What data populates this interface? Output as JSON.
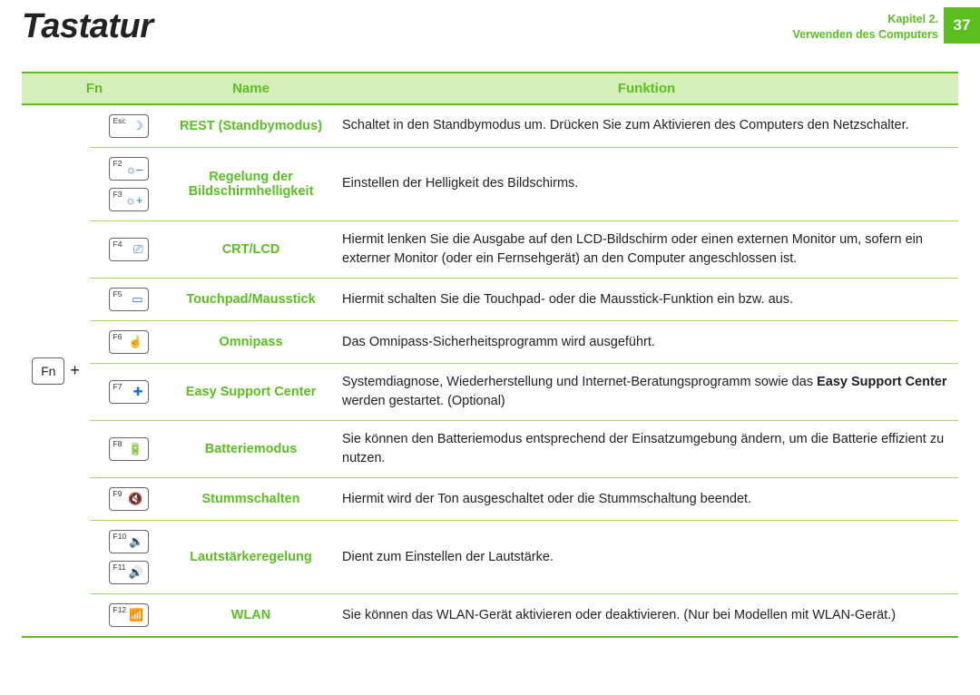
{
  "header": {
    "title": "Tastatur",
    "chapter_line1": "Kapitel 2.",
    "chapter_line2": "Verwenden des Computers",
    "page_number": "37"
  },
  "table": {
    "head": {
      "fn": "Fn",
      "name": "Name",
      "funktion": "Funktion"
    },
    "fn_key_label": "Fn",
    "fn_plus": "+",
    "rows": [
      {
        "keys": [
          {
            "label": "Esc",
            "icon": "☽",
            "icon_color": "#1f6fd1"
          }
        ],
        "name": "REST (Standbymodus)",
        "func_html": "Schaltet in den Standbymodus um. Drücken Sie zum Aktivieren des Computers den Netzschalter."
      },
      {
        "keys": [
          {
            "label": "F2",
            "icon": "☼–",
            "icon_color": "#1f6fd1"
          },
          {
            "label": "F3",
            "icon": "☼+",
            "icon_color": "#1f6fd1"
          }
        ],
        "name": "Regelung der Bildschirmhelligkeit",
        "func_html": "Einstellen der Helligkeit des Bildschirms."
      },
      {
        "keys": [
          {
            "label": "F4",
            "icon": "⎚",
            "icon_color": "#1f6fd1"
          }
        ],
        "name": "CRT/LCD",
        "func_html": "Hiermit lenken Sie die Ausgabe auf den LCD-Bildschirm oder einen externen Monitor um, sofern ein externer Monitor (oder ein Fernsehgerät) an den Computer angeschlossen ist."
      },
      {
        "keys": [
          {
            "label": "F5",
            "icon": "▭",
            "icon_color": "#1f6fd1"
          }
        ],
        "name": "Touchpad/Mausstick",
        "func_html": "Hiermit schalten Sie die Touchpad- oder die Mausstick-Funktion ein bzw. aus."
      },
      {
        "keys": [
          {
            "label": "F6",
            "icon": "☝",
            "icon_color": "#1f6fd1"
          }
        ],
        "name": "Omnipass",
        "func_html": "Das Omnipass-Sicherheitsprogramm wird ausgeführt."
      },
      {
        "keys": [
          {
            "label": "F7",
            "icon": "✚",
            "icon_color": "#1f6fd1"
          }
        ],
        "name": "Easy Support Center",
        "func_html": "Systemdiagnose, Wiederherstellung und Internet-Beratungsprogramm sowie das <b>Easy Support Center</b> werden gestartet. (Optional)"
      },
      {
        "keys": [
          {
            "label": "F8",
            "icon": "🔋",
            "icon_color": "#1f6fd1"
          }
        ],
        "name": "Batteriemodus",
        "func_html": "Sie können den Batteriemodus entsprechend der Einsatzumgebung ändern, um die Batterie effizient zu nutzen."
      },
      {
        "keys": [
          {
            "label": "F9",
            "icon": "🔇",
            "icon_color": "#1f6fd1"
          }
        ],
        "name": "Stummschalten",
        "func_html": "Hiermit wird der Ton ausgeschaltet oder die Stummschaltung beendet."
      },
      {
        "keys": [
          {
            "label": "F10",
            "icon": "🔉",
            "icon_color": "#1f6fd1"
          },
          {
            "label": "F11",
            "icon": "🔊",
            "icon_color": "#1f6fd1"
          }
        ],
        "name": "Lautstärkeregelung",
        "func_html": "Dient zum Einstellen der Lautstärke."
      },
      {
        "keys": [
          {
            "label": "F12",
            "icon": "📶",
            "icon_color": "#1f6fd1"
          }
        ],
        "name": "WLAN",
        "func_html": "Sie können das WLAN-Gerät aktivieren oder deaktivieren. (Nur bei Modellen mit WLAN-Gerät.)"
      }
    ]
  },
  "colors": {
    "accent": "#5bbf21",
    "header_bg": "#d6efb9",
    "row_border": "#a7d96a",
    "icon_blue": "#1f6fd1"
  }
}
